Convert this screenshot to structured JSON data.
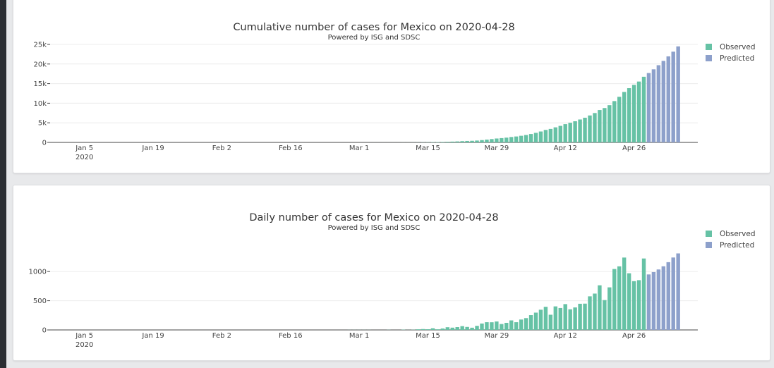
{
  "colors": {
    "observed": "#66c2a5",
    "predicted": "#8da0cb"
  },
  "chart_data": [
    {
      "type": "bar",
      "title": "Cumulative number of cases for Mexico on 2020-04-28",
      "subtitle": "Powered by ISG and SDSC",
      "x_ticks": [
        {
          "date": "2020-01-05",
          "label": "Jan 5",
          "sub": "2020"
        },
        {
          "date": "2020-01-19",
          "label": "Jan 19"
        },
        {
          "date": "2020-02-02",
          "label": "Feb 2"
        },
        {
          "date": "2020-02-16",
          "label": "Feb 16"
        },
        {
          "date": "2020-03-01",
          "label": "Mar 1"
        },
        {
          "date": "2020-03-15",
          "label": "Mar 15"
        },
        {
          "date": "2020-03-29",
          "label": "Mar 29"
        },
        {
          "date": "2020-04-12",
          "label": "Apr 12"
        },
        {
          "date": "2020-04-26",
          "label": "Apr 26"
        }
      ],
      "y_ticks": [
        {
          "value": 0,
          "label": "0"
        },
        {
          "value": 5000,
          "label": "5k"
        },
        {
          "value": 10000,
          "label": "10k"
        },
        {
          "value": 15000,
          "label": "15k"
        },
        {
          "value": 20000,
          "label": "20k"
        },
        {
          "value": 25000,
          "label": "25k"
        }
      ],
      "ylim": [
        0,
        25000
      ],
      "xlim": [
        "2019-12-29",
        "2020-05-09"
      ],
      "grid": true,
      "legend_position": "top-right",
      "series": [
        {
          "name": "Observed",
          "start_date": "2020-02-28",
          "values": [
            1,
            2,
            3,
            4,
            5,
            5,
            5,
            5,
            7,
            7,
            7,
            11,
            12,
            15,
            26,
            41,
            53,
            82,
            93,
            118,
            164,
            203,
            251,
            316,
            367,
            405,
            475,
            585,
            717,
            848,
            993,
            1094,
            1215,
            1378,
            1510,
            1688,
            1890,
            2143,
            2439,
            2785,
            3181,
            3441,
            3844,
            4219,
            4661,
            5014,
            5399,
            5847,
            6297,
            6875,
            7497,
            8261,
            8772,
            9501,
            10544,
            11633,
            12872,
            13842,
            14677,
            15529,
            16752
          ]
        },
        {
          "name": "Predicted",
          "start_date": "2020-04-29",
          "values": [
            17700,
            18650,
            19700,
            20800,
            21950,
            23150,
            24500
          ]
        }
      ]
    },
    {
      "type": "bar",
      "title": "Daily number of cases for Mexico on 2020-04-28",
      "subtitle": "Powered by ISG and SDSC",
      "x_ticks": [
        {
          "date": "2020-01-05",
          "label": "Jan 5",
          "sub": "2020"
        },
        {
          "date": "2020-01-19",
          "label": "Jan 19"
        },
        {
          "date": "2020-02-02",
          "label": "Feb 2"
        },
        {
          "date": "2020-02-16",
          "label": "Feb 16"
        },
        {
          "date": "2020-03-01",
          "label": "Mar 1"
        },
        {
          "date": "2020-03-15",
          "label": "Mar 15"
        },
        {
          "date": "2020-03-29",
          "label": "Mar 29"
        },
        {
          "date": "2020-04-12",
          "label": "Apr 12"
        },
        {
          "date": "2020-04-26",
          "label": "Apr 26"
        }
      ],
      "y_ticks": [
        {
          "value": 0,
          "label": "0"
        },
        {
          "value": 500,
          "label": "500"
        },
        {
          "value": 1000,
          "label": "1000"
        }
      ],
      "ylim": [
        0,
        1400
      ],
      "xlim": [
        "2019-12-29",
        "2020-05-09"
      ],
      "grid": true,
      "legend_position": "top-right",
      "series": [
        {
          "name": "Observed",
          "start_date": "2020-02-28",
          "values": [
            1,
            1,
            1,
            1,
            1,
            0,
            0,
            0,
            2,
            0,
            0,
            4,
            1,
            3,
            11,
            15,
            12,
            29,
            11,
            25,
            46,
            39,
            48,
            65,
            51,
            38,
            70,
            110,
            132,
            131,
            145,
            101,
            121,
            163,
            132,
            178,
            202,
            253,
            296,
            346,
            396,
            260,
            403,
            375,
            442,
            353,
            385,
            448,
            450,
            575,
            622,
            764,
            511,
            729,
            1043,
            1089,
            1239,
            970,
            835,
            852,
            1223
          ]
        },
        {
          "name": "Predicted",
          "start_date": "2020-04-29",
          "values": [
            950,
            990,
            1035,
            1090,
            1160,
            1240,
            1310
          ]
        }
      ]
    }
  ]
}
